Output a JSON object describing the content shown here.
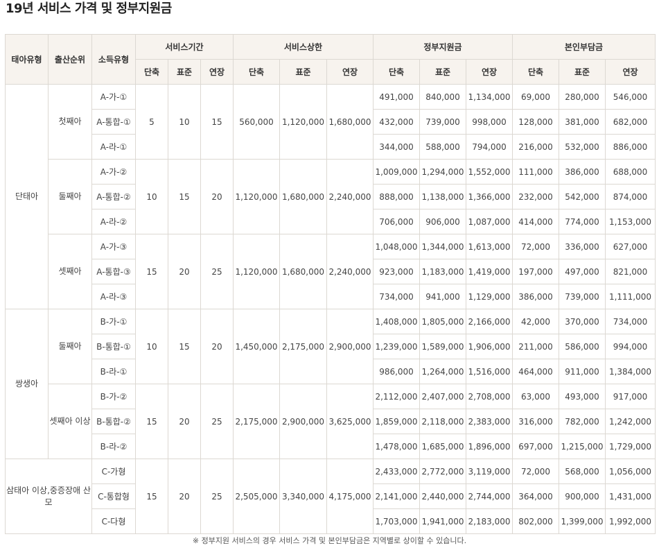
{
  "title": "19년 서비스 가격 및 정부지원금",
  "headers": {
    "birth_type": "태아유형",
    "birth_order": "출산순위",
    "income_type": "소득유형",
    "groups": [
      "서비스기간",
      "서비스상한",
      "정부지원금",
      "본인부담금"
    ],
    "sub": [
      "단축",
      "표준",
      "연장"
    ]
  },
  "groups": [
    {
      "type": "단태아",
      "orders": [
        {
          "order": "첫째아",
          "period": [
            "5",
            "10",
            "15"
          ],
          "limit": [
            "560,000",
            "1,120,000",
            "1,680,000"
          ],
          "rows": [
            {
              "income": "A-가-①",
              "gov": [
                "491,000",
                "840,000",
                "1,134,000"
              ],
              "self": [
                "69,000",
                "280,000",
                "546,000"
              ]
            },
            {
              "income": "A-통합-①",
              "gov": [
                "432,000",
                "739,000",
                "998,000"
              ],
              "self": [
                "128,000",
                "381,000",
                "682,000"
              ]
            },
            {
              "income": "A-라-①",
              "gov": [
                "344,000",
                "588,000",
                "794,000"
              ],
              "self": [
                "216,000",
                "532,000",
                "886,000"
              ]
            }
          ]
        },
        {
          "order": "둘째아",
          "period": [
            "10",
            "15",
            "20"
          ],
          "limit": [
            "1,120,000",
            "1,680,000",
            "2,240,000"
          ],
          "rows": [
            {
              "income": "A-가-②",
              "gov": [
                "1,009,000",
                "1,294,000",
                "1,552,000"
              ],
              "self": [
                "111,000",
                "386,000",
                "688,000"
              ]
            },
            {
              "income": "A-통합-②",
              "gov": [
                "888,000",
                "1,138,000",
                "1,366,000"
              ],
              "self": [
                "232,000",
                "542,000",
                "874,000"
              ]
            },
            {
              "income": "A-라-②",
              "gov": [
                "706,000",
                "906,000",
                "1,087,000"
              ],
              "self": [
                "414,000",
                "774,000",
                "1,153,000"
              ]
            }
          ]
        },
        {
          "order": "셋째아",
          "period": [
            "15",
            "20",
            "25"
          ],
          "limit": [
            "1,120,000",
            "1,680,000",
            "2,240,000"
          ],
          "rows": [
            {
              "income": "A-가-③",
              "gov": [
                "1,048,000",
                "1,344,000",
                "1,613,000"
              ],
              "self": [
                "72,000",
                "336,000",
                "627,000"
              ]
            },
            {
              "income": "A-통합-③",
              "gov": [
                "923,000",
                "1,183,000",
                "1,419,000"
              ],
              "self": [
                "197,000",
                "497,000",
                "821,000"
              ]
            },
            {
              "income": "A-라-③",
              "gov": [
                "734,000",
                "941,000",
                "1,129,000"
              ],
              "self": [
                "386,000",
                "739,000",
                "1,111,000"
              ]
            }
          ]
        }
      ]
    },
    {
      "type": "쌍생아",
      "orders": [
        {
          "order": "둘째아",
          "period": [
            "10",
            "15",
            "20"
          ],
          "limit": [
            "1,450,000",
            "2,175,000",
            "2,900,000"
          ],
          "rows": [
            {
              "income": "B-가-①",
              "gov": [
                "1,408,000",
                "1,805,000",
                "2,166,000"
              ],
              "self": [
                "42,000",
                "370,000",
                "734,000"
              ]
            },
            {
              "income": "B-통합-①",
              "gov": [
                "1,239,000",
                "1,589,000",
                "1,906,000"
              ],
              "self": [
                "211,000",
                "586,000",
                "994,000"
              ]
            },
            {
              "income": "B-라-①",
              "gov": [
                "986,000",
                "1,264,000",
                "1,516,000"
              ],
              "self": [
                "464,000",
                "911,000",
                "1,384,000"
              ]
            }
          ]
        },
        {
          "order": "셋째아 이상",
          "period": [
            "15",
            "20",
            "25"
          ],
          "limit": [
            "2,175,000",
            "2,900,000",
            "3,625,000"
          ],
          "rows": [
            {
              "income": "B-가-②",
              "gov": [
                "2,112,000",
                "2,407,000",
                "2,708,000"
              ],
              "self": [
                "63,000",
                "493,000",
                "917,000"
              ]
            },
            {
              "income": "B-통합-②",
              "gov": [
                "1,859,000",
                "2,118,000",
                "2,383,000"
              ],
              "self": [
                "316,000",
                "782,000",
                "1,242,000"
              ]
            },
            {
              "income": "B-라-②",
              "gov": [
                "1,478,000",
                "1,685,000",
                "1,896,000"
              ],
              "self": [
                "697,000",
                "1,215,000",
                "1,729,000"
              ]
            }
          ]
        }
      ]
    },
    {
      "type": "삼태아 이상,중증장애 산모",
      "orders": [
        {
          "order": "",
          "period": [
            "15",
            "20",
            "25"
          ],
          "limit": [
            "2,505,000",
            "3,340,000",
            "4,175,000"
          ],
          "rows": [
            {
              "income": "C-가형",
              "gov": [
                "2,433,000",
                "2,772,000",
                "3,119,000"
              ],
              "self": [
                "72,000",
                "568,000",
                "1,056,000"
              ]
            },
            {
              "income": "C-통합형",
              "gov": [
                "2,141,000",
                "2,440,000",
                "2,744,000"
              ],
              "self": [
                "364,000",
                "900,000",
                "1,431,000"
              ]
            },
            {
              "income": "C-다형",
              "gov": [
                "1,703,000",
                "1,941,000",
                "2,183,000"
              ],
              "self": [
                "802,000",
                "1,399,000",
                "1,992,000"
              ]
            }
          ]
        }
      ]
    }
  ],
  "note": "※ 정부지원 서비스의 경우 서비스 가격 및 본인부담금은 지역별로 상이할 수 있습니다."
}
